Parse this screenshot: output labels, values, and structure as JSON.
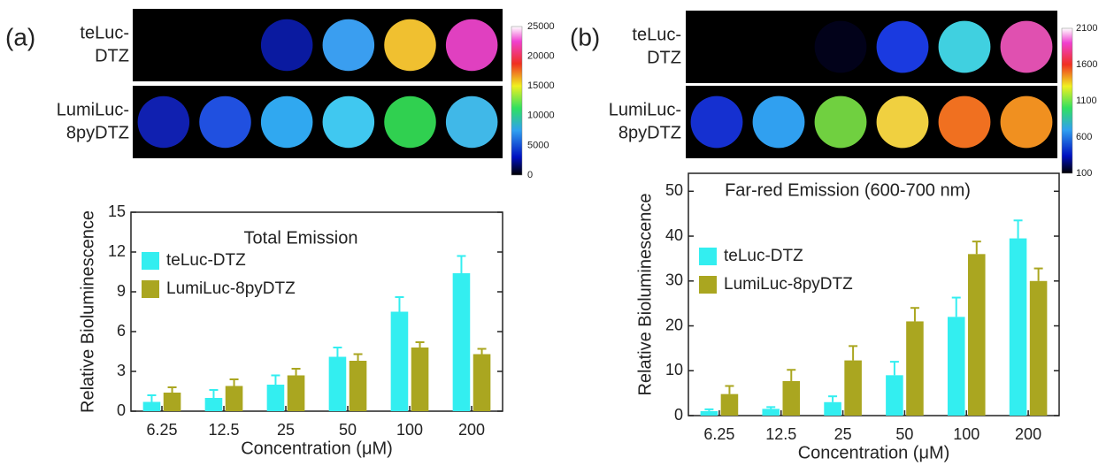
{
  "chart_data": [
    {
      "type": "bar",
      "panel_label": "(a)",
      "title": "Total Emission",
      "x_label": "Concentration (μM)",
      "y_label": "Relative Bioluminescence",
      "categories": [
        "6.25",
        "12.5",
        "25",
        "50",
        "100",
        "200"
      ],
      "series": [
        {
          "name": "teLuc-DTZ",
          "color": "#33eef0",
          "values": [
            0.7,
            1.0,
            2.0,
            4.1,
            7.5,
            10.4
          ],
          "errors": [
            0.5,
            0.6,
            0.7,
            0.7,
            1.1,
            1.3
          ]
        },
        {
          "name": "LumiLuc-8pyDTZ",
          "color": "#aaa620",
          "values": [
            1.4,
            1.9,
            2.7,
            3.8,
            4.8,
            4.3
          ],
          "errors": [
            0.4,
            0.5,
            0.5,
            0.5,
            0.4,
            0.4
          ]
        }
      ],
      "ylim": [
        0,
        15
      ],
      "yticks": [
        0,
        3,
        6,
        9,
        12,
        15
      ],
      "image_rows": [
        {
          "label": [
            "teLuc-",
            "DTZ"
          ],
          "well_colors": [
            "#000000",
            "#000000",
            "#0a1aa0",
            "#3a9ef0",
            "#f0c030",
            "#e040c0"
          ]
        },
        {
          "label": [
            "LumiLuc-",
            "8pyDTZ"
          ],
          "well_colors": [
            "#1020b0",
            "#2050e0",
            "#30a8f0",
            "#40c8f0",
            "#30d050",
            "#40b8e8"
          ]
        }
      ],
      "colorbar_ticks": [
        25000,
        20000,
        15000,
        10000,
        5000,
        0
      ]
    },
    {
      "type": "bar",
      "panel_label": "(b)",
      "title": "Far-red Emission (600-700 nm)",
      "x_label": "Concentration (μM)",
      "y_label": "Relative Bioluminescence",
      "categories": [
        "6.25",
        "12.5",
        "25",
        "50",
        "100",
        "200"
      ],
      "series": [
        {
          "name": "teLuc-DTZ",
          "color": "#33eef0",
          "values": [
            1.0,
            1.5,
            3.0,
            9.0,
            22.0,
            39.5
          ],
          "errors": [
            0.4,
            0.4,
            1.3,
            3.0,
            4.3,
            4.0
          ]
        },
        {
          "name": "LumiLuc-8pyDTZ",
          "color": "#aaa620",
          "values": [
            4.8,
            7.7,
            12.3,
            21.0,
            36.0,
            30.0
          ],
          "errors": [
            1.8,
            2.5,
            3.2,
            3.0,
            2.8,
            2.8
          ]
        }
      ],
      "ylim": [
        0,
        54
      ],
      "yticks": [
        0,
        10,
        20,
        30,
        40,
        50
      ],
      "image_rows": [
        {
          "label": [
            "teLuc-",
            "DTZ"
          ],
          "well_colors": [
            "#000000",
            "#000000",
            "#02021a",
            "#1a3ae0",
            "#40d0e0",
            "#e050b0"
          ]
        },
        {
          "label": [
            "LumiLuc-",
            "8pyDTZ"
          ],
          "well_colors": [
            "#1530d0",
            "#30a0f0",
            "#70d040",
            "#f0d040",
            "#f07020",
            "#f09020"
          ]
        }
      ],
      "colorbar_ticks": [
        2100,
        1600,
        1100,
        600,
        100
      ]
    }
  ]
}
